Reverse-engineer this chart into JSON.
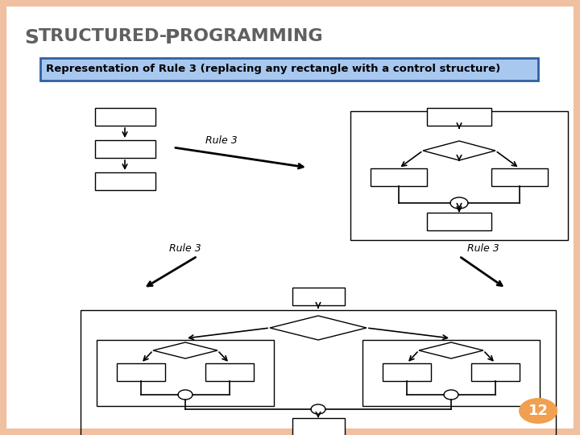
{
  "title_s": "S",
  "title_rest1": "TRUCTURED-",
  "title_p": "P",
  "title_rest2": "ROGRAMMING",
  "subtitle": "Representation of Rule 3 (replacing any rectangle with a control structure)",
  "page_num": "12",
  "bg_color": "#ffffff",
  "border_color": "#f0c0a0",
  "subtitle_bg": "#a8c8f0",
  "subtitle_border": "#3060a0",
  "text_color": "#606060",
  "arrow_color": "#000000",
  "page_bg": "#f0a050",
  "page_text": "#ffffff"
}
